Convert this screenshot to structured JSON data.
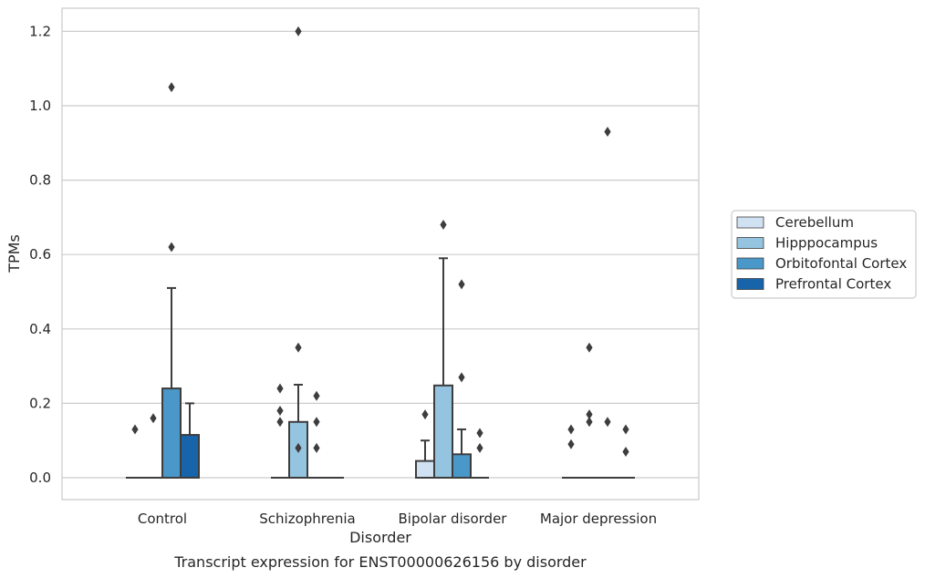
{
  "chart_data": {
    "type": "box",
    "title": "",
    "caption": "Transcript expression for ENST00000626156 by disorder",
    "xlabel": "Disorder",
    "ylabel": "TPMs",
    "ylim": [
      -0.06,
      1.26
    ],
    "yticks": [
      0.0,
      0.2,
      0.4,
      0.6,
      0.8,
      1.0,
      1.2
    ],
    "ytick_labels": [
      "0.0",
      "0.2",
      "0.4",
      "0.6",
      "0.8",
      "1.0",
      "1.2"
    ],
    "grid": true,
    "legend_position": "right",
    "categories": [
      "Control",
      "Schizophrenia",
      "Bipolar disorder",
      "Major depression"
    ],
    "series": [
      {
        "name": "Cerebellum",
        "color": "#d0e1f2",
        "boxes": [
          {
            "q1": 0,
            "median": 0,
            "q3": 0,
            "whisker_low": 0,
            "whisker_high": 0,
            "outliers": [
              0.13
            ]
          },
          {
            "q1": 0,
            "median": 0,
            "q3": 0,
            "whisker_low": 0,
            "whisker_high": 0,
            "outliers": [
              0.15,
              0.18,
              0.24
            ]
          },
          {
            "q1": 0,
            "median": 0,
            "q3": 0.045,
            "whisker_low": 0,
            "whisker_high": 0.1,
            "outliers": [
              0.17
            ]
          },
          {
            "q1": 0,
            "median": 0,
            "q3": 0,
            "whisker_low": 0,
            "whisker_high": 0,
            "outliers": [
              0.09,
              0.13
            ]
          }
        ]
      },
      {
        "name": "Hipppocampus",
        "color": "#94c4df",
        "boxes": [
          {
            "q1": 0,
            "median": 0,
            "q3": 0,
            "whisker_low": 0,
            "whisker_high": 0,
            "outliers": [
              0.16
            ]
          },
          {
            "q1": 0,
            "median": 0,
            "q3": 0.15,
            "whisker_low": 0,
            "whisker_high": 0.25,
            "outliers": [
              0.08,
              0.35,
              1.2
            ]
          },
          {
            "q1": 0,
            "median": 0,
            "q3": 0.248,
            "whisker_low": 0,
            "whisker_high": 0.59,
            "outliers": [
              0.68
            ]
          },
          {
            "q1": 0,
            "median": 0,
            "q3": 0,
            "whisker_low": 0,
            "whisker_high": 0,
            "outliers": [
              0.15,
              0.17,
              0.35
            ]
          }
        ]
      },
      {
        "name": "Orbitofontal Cortex",
        "color": "#4a98c9",
        "boxes": [
          {
            "q1": 0,
            "median": 0,
            "q3": 0.24,
            "whisker_low": 0,
            "whisker_high": 0.51,
            "outliers": [
              0.62,
              1.05
            ]
          },
          {
            "q1": 0,
            "median": 0,
            "q3": 0,
            "whisker_low": 0,
            "whisker_high": 0,
            "outliers": [
              0.08,
              0.15,
              0.22
            ]
          },
          {
            "q1": 0,
            "median": 0,
            "q3": 0.063,
            "whisker_low": 0,
            "whisker_high": 0.13,
            "outliers": [
              0.27,
              0.52
            ]
          },
          {
            "q1": 0,
            "median": 0,
            "q3": 0,
            "whisker_low": 0,
            "whisker_high": 0,
            "outliers": [
              0.15,
              0.93
            ]
          }
        ]
      },
      {
        "name": "Prefrontal Cortex",
        "color": "#1764ab",
        "boxes": [
          {
            "q1": 0,
            "median": 0,
            "q3": 0.115,
            "whisker_low": 0,
            "whisker_high": 0.2,
            "outliers": []
          },
          {
            "q1": 0,
            "median": 0,
            "q3": 0,
            "whisker_low": 0,
            "whisker_high": 0,
            "outliers": []
          },
          {
            "q1": 0,
            "median": 0,
            "q3": 0,
            "whisker_low": 0,
            "whisker_high": 0,
            "outliers": [
              0.08,
              0.12
            ]
          },
          {
            "q1": 0,
            "median": 0,
            "q3": 0,
            "whisker_low": 0,
            "whisker_high": 0,
            "outliers": [
              0.07,
              0.13
            ]
          }
        ]
      }
    ]
  }
}
